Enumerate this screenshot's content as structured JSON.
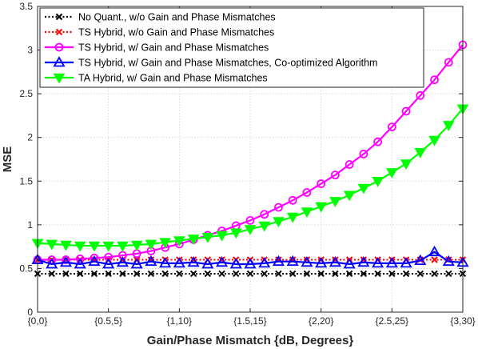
{
  "chart_data": {
    "type": "line",
    "title": "",
    "xlabel": "Gain/Phase Mismatch {dB, Degrees}",
    "ylabel": "MSE",
    "x": [
      0,
      0.1,
      0.2,
      0.3,
      0.4,
      0.5,
      0.6,
      0.7,
      0.8,
      0.9,
      1.0,
      1.1,
      1.2,
      1.3,
      1.4,
      1.5,
      1.6,
      1.7,
      1.8,
      1.9,
      2.0,
      2.1,
      2.2,
      2.3,
      2.4,
      2.5,
      2.6,
      2.7,
      2.8,
      2.9,
      3.0
    ],
    "xlim": [
      0,
      3
    ],
    "ylim": [
      0,
      3.5
    ],
    "xticks": [
      0,
      0.5,
      1,
      1.5,
      2,
      2.5,
      3
    ],
    "xtick_labels": [
      "{0,0}",
      "{0.5,5}",
      "{1,10}",
      "{1.5,15}",
      "{2,20}",
      "{2.5,25}",
      "{3,30}"
    ],
    "yticks": [
      0,
      0.5,
      1,
      1.5,
      2,
      2.5,
      3,
      3.5
    ],
    "ytick_labels": [
      "0",
      "0.5",
      "1",
      "1.5",
      "2",
      "2.5",
      "3",
      "3.5"
    ],
    "grid": true,
    "legend_position": "top-left",
    "series": [
      {
        "name": "No Quant., w/o Gain and Phase Mismatches",
        "color": "#000000",
        "line_style": "dotted",
        "marker": "x",
        "values": [
          0.44,
          0.44,
          0.44,
          0.44,
          0.44,
          0.44,
          0.44,
          0.44,
          0.44,
          0.44,
          0.44,
          0.44,
          0.44,
          0.44,
          0.44,
          0.44,
          0.44,
          0.44,
          0.44,
          0.44,
          0.44,
          0.44,
          0.44,
          0.44,
          0.44,
          0.44,
          0.44,
          0.44,
          0.44,
          0.44,
          0.44
        ]
      },
      {
        "name": "TS Hybrid, w/o Gain and Phase Mismatches",
        "color": "#ff0000",
        "line_style": "dotted",
        "marker": "x",
        "values": [
          0.6,
          0.6,
          0.6,
          0.6,
          0.6,
          0.6,
          0.6,
          0.6,
          0.6,
          0.6,
          0.6,
          0.6,
          0.6,
          0.6,
          0.6,
          0.6,
          0.6,
          0.6,
          0.6,
          0.6,
          0.6,
          0.6,
          0.6,
          0.6,
          0.6,
          0.6,
          0.6,
          0.6,
          0.6,
          0.6,
          0.6
        ]
      },
      {
        "name": "TS Hybrid, w/ Gain and Phase Mismatches",
        "color": "#ff00ff",
        "line_style": "solid",
        "marker": "circle",
        "values": [
          0.6,
          0.6,
          0.6,
          0.61,
          0.62,
          0.63,
          0.65,
          0.67,
          0.7,
          0.74,
          0.78,
          0.83,
          0.88,
          0.93,
          0.99,
          1.05,
          1.12,
          1.2,
          1.28,
          1.37,
          1.47,
          1.57,
          1.69,
          1.81,
          1.95,
          2.12,
          2.3,
          2.48,
          2.66,
          2.86,
          3.06
        ]
      },
      {
        "name": "TS Hybrid, w/ Gain and Phase Mismatches, Co-optimized Algorithm",
        "color": "#0000ff",
        "line_style": "solid",
        "marker": "triangle-up",
        "values": [
          0.6,
          0.55,
          0.57,
          0.55,
          0.58,
          0.55,
          0.57,
          0.55,
          0.58,
          0.56,
          0.56,
          0.57,
          0.55,
          0.57,
          0.55,
          0.55,
          0.56,
          0.58,
          0.58,
          0.57,
          0.56,
          0.57,
          0.55,
          0.57,
          0.56,
          0.56,
          0.56,
          0.59,
          0.69,
          0.58,
          0.57
        ]
      },
      {
        "name": "TA Hybrid, w/ Gain and Phase Mismatches",
        "color": "#00ff00",
        "line_style": "solid",
        "marker": "triangle-down",
        "values": [
          0.79,
          0.78,
          0.77,
          0.76,
          0.76,
          0.76,
          0.76,
          0.77,
          0.78,
          0.8,
          0.82,
          0.84,
          0.86,
          0.88,
          0.91,
          0.95,
          0.99,
          1.04,
          1.09,
          1.15,
          1.21,
          1.27,
          1.34,
          1.42,
          1.5,
          1.6,
          1.7,
          1.83,
          1.97,
          2.14,
          2.33
        ]
      }
    ]
  }
}
